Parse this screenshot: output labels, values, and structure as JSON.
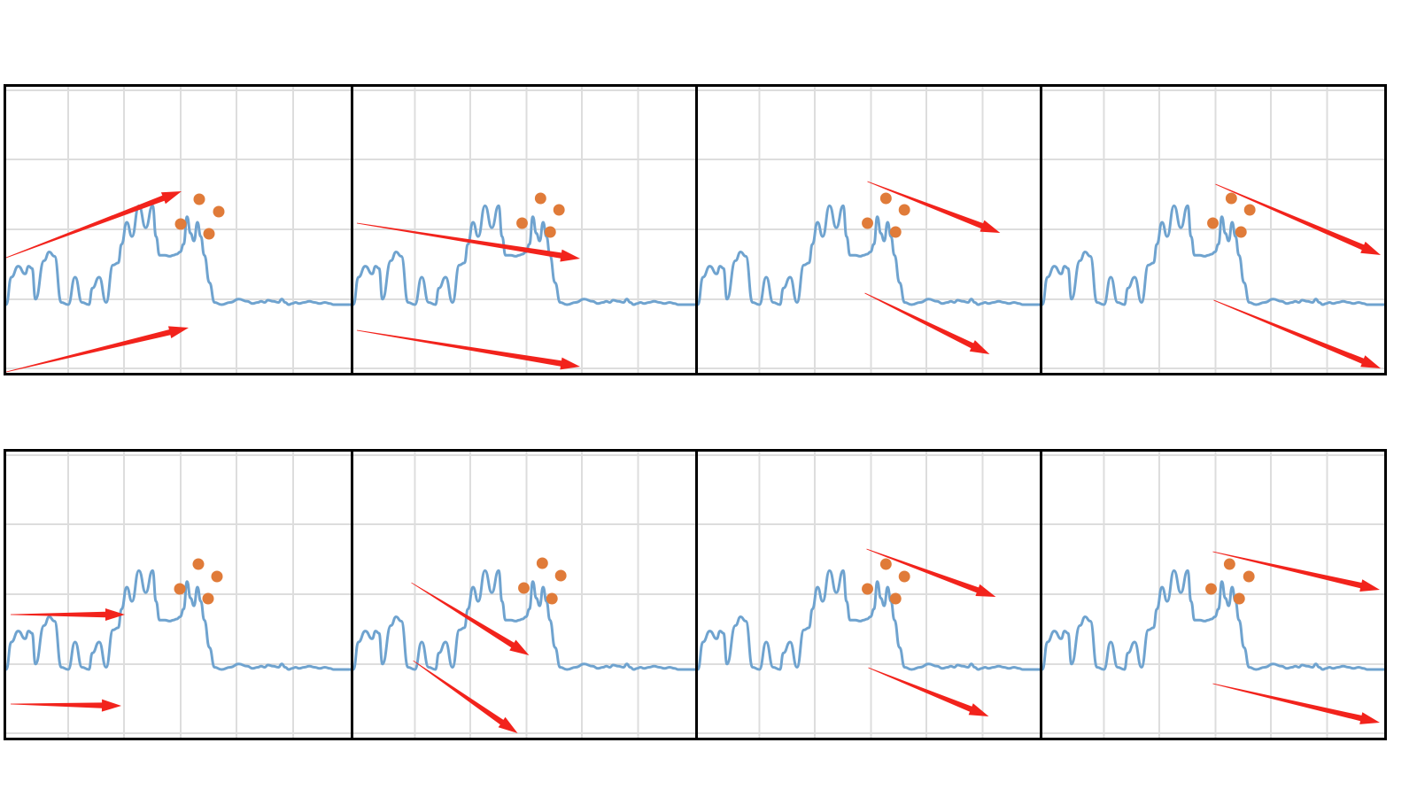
{
  "colors": {
    "grid": "#dddddd",
    "signal": "#6fa3cf",
    "peak": "#e07b39",
    "arrow": "#f2231c",
    "frame": "#000000"
  },
  "signal": {
    "x": [
      0,
      3,
      7,
      11,
      13,
      15,
      17,
      22,
      25,
      28,
      32,
      36,
      40,
      44,
      48,
      50,
      54,
      58,
      62,
      65,
      67,
      70,
      73,
      77,
      81,
      85,
      87,
      89,
      92,
      95,
      97,
      99,
      101,
      103,
      105,
      107,
      109,
      111,
      113,
      115,
      118,
      121,
      125,
      130,
      135,
      140,
      143,
      146,
      148,
      150,
      152,
      155,
      158,
      160,
      162,
      164,
      166,
      168,
      170,
      173,
      176,
      179,
      182,
      185,
      188,
      190,
      192,
      194,
      196,
      198,
      200
    ],
    "y": [
      0,
      0.25,
      0.35,
      0.28,
      0.35,
      0.33,
      0.05,
      0.4,
      0.48,
      0.44,
      0.02,
      0,
      0.25,
      0.02,
      0,
      0.15,
      0.25,
      0.02,
      0.36,
      0.38,
      0.55,
      0.75,
      0.62,
      0.9,
      0.7,
      0.9,
      0.62,
      0.45,
      0.45,
      0.44,
      0.45,
      0.46,
      0.48,
      0.55,
      0.8,
      0.65,
      0.58,
      0.75,
      0.62,
      0.45,
      0.2,
      0.02,
      0,
      0.02,
      0.05,
      0.03,
      0.01,
      0.02,
      0.03,
      0.02,
      0.04,
      0.03,
      0.02,
      0.05,
      0.02,
      0,
      0.01,
      0.02,
      0.01,
      0.02,
      0.03,
      0.02,
      0.01,
      0.02,
      0.01,
      0,
      0,
      0,
      0,
      0,
      0
    ]
  }
}
